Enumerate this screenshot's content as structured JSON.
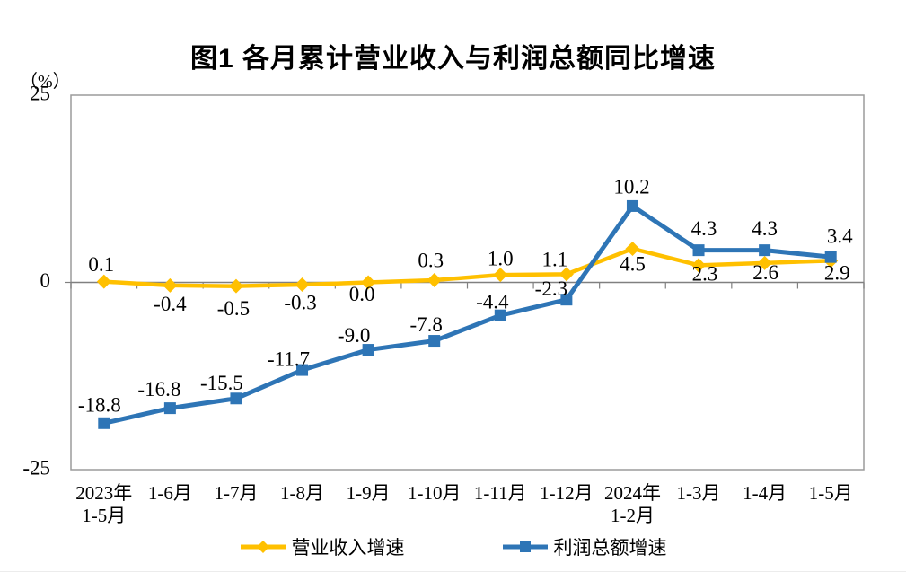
{
  "title": "图1 各月累计营业收入与利润总额同比增速",
  "y_axis_unit": "（%）",
  "chart_data": {
    "type": "line",
    "categories": [
      [
        "2023年",
        "1-5月"
      ],
      [
        "1-6月"
      ],
      [
        "1-7月"
      ],
      [
        "1-8月"
      ],
      [
        "1-9月"
      ],
      [
        "1-10月"
      ],
      [
        "1-11月"
      ],
      [
        "1-12月"
      ],
      [
        "2024年",
        "1-2月"
      ],
      [
        "1-3月"
      ],
      [
        "1-4月"
      ],
      [
        "1-5月"
      ]
    ],
    "series": [
      {
        "name": "营业收入增速",
        "color": "#FFC000",
        "marker": "diamond",
        "values": [
          0.1,
          -0.4,
          -0.5,
          -0.3,
          0.0,
          0.3,
          1.0,
          1.1,
          4.5,
          2.3,
          2.6,
          2.9
        ],
        "labels": [
          "0.1",
          "-0.4",
          "-0.5",
          "-0.3",
          "0.0",
          "0.3",
          "1.0",
          "1.1",
          "4.5",
          "2.3",
          "2.6",
          "2.9"
        ],
        "label_offsets": [
          [
            -3,
            -17
          ],
          [
            0,
            23
          ],
          [
            -3,
            27
          ],
          [
            -2,
            22
          ],
          [
            -7,
            15
          ],
          [
            -4,
            -20
          ],
          [
            0,
            -16
          ],
          [
            -13,
            -14
          ],
          [
            0,
            19
          ],
          [
            7,
            12
          ],
          [
            1,
            13
          ],
          [
            7,
            16
          ]
        ]
      },
      {
        "name": "利润总额增速",
        "color": "#2E75B6",
        "marker": "square",
        "values": [
          -18.8,
          -16.8,
          -15.5,
          -11.7,
          -9.0,
          -7.8,
          -4.4,
          -2.3,
          10.2,
          4.3,
          4.3,
          3.4
        ],
        "labels": [
          "-18.8",
          "-16.8",
          "-15.5",
          "-11.7",
          "-9.0",
          "-7.8",
          "-4.4",
          "-2.3",
          "10.2",
          "4.3",
          "4.3",
          "3.4"
        ],
        "label_offsets": [
          [
            -5,
            -18
          ],
          [
            -12,
            -19
          ],
          [
            -16,
            -15
          ],
          [
            -15,
            -10
          ],
          [
            -16,
            -14
          ],
          [
            -9,
            -16
          ],
          [
            -9,
            -13
          ],
          [
            -17,
            -10
          ],
          [
            -1,
            -19
          ],
          [
            6,
            -22
          ],
          [
            0,
            -22
          ],
          [
            10,
            -21
          ]
        ]
      }
    ],
    "ylim": [
      -25,
      25
    ],
    "y_ticks": [
      "25",
      "0",
      "-25"
    ],
    "grid": "zero-line-only",
    "legend_position": "bottom",
    "axis_color": "#808080",
    "border_color": "#9b9b9b",
    "label_color": "#000000"
  }
}
